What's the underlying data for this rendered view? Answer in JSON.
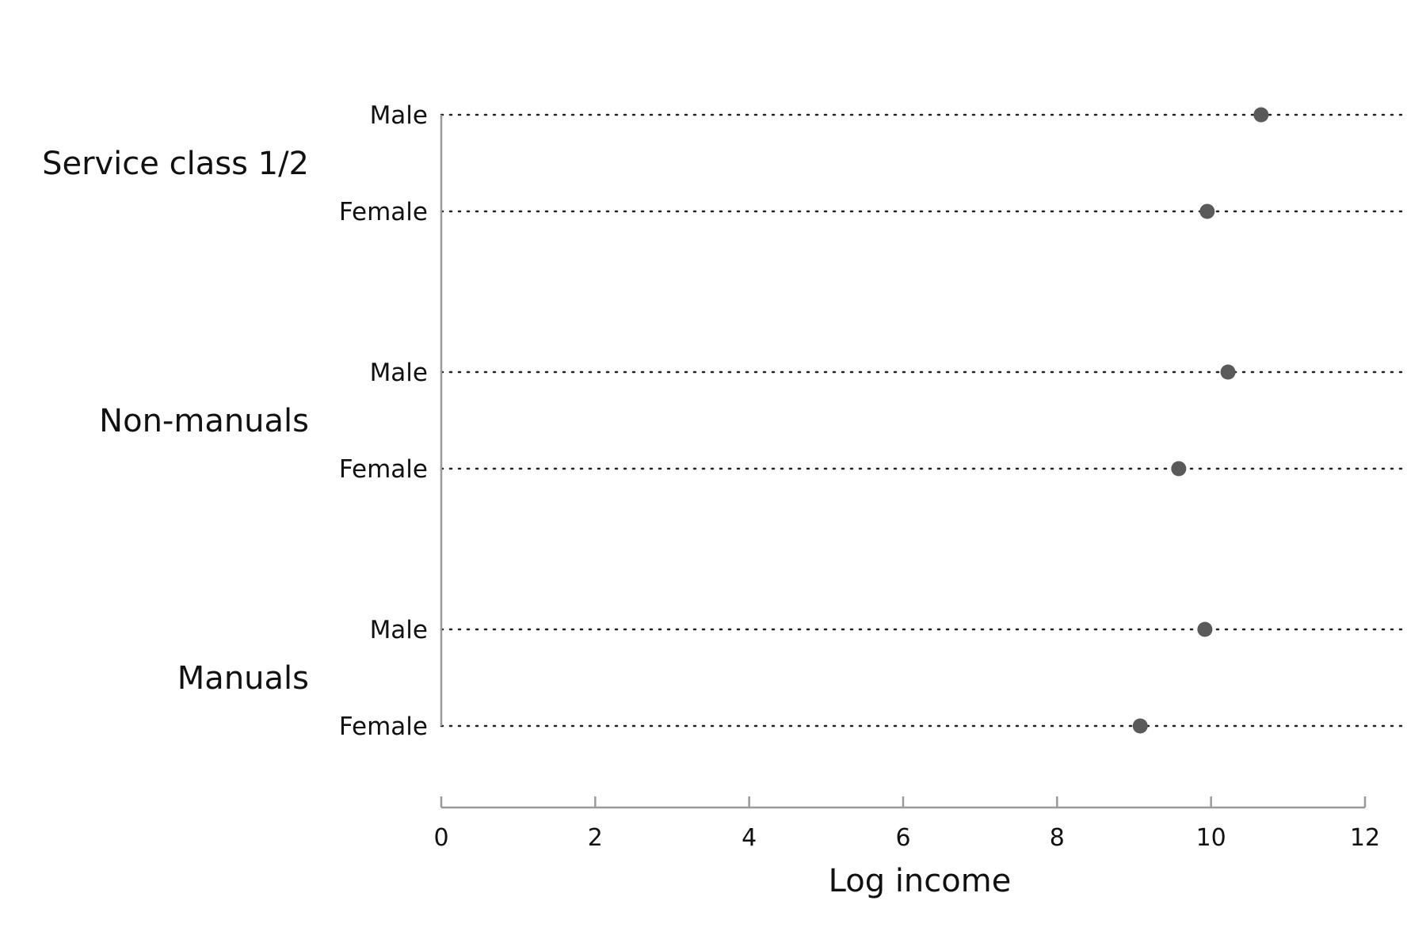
{
  "chart_data": {
    "type": "scatter",
    "title": "",
    "xlabel": "Log income",
    "ylabel": "",
    "xlim": [
      0,
      12
    ],
    "xticks": [
      "0",
      "2",
      "4",
      "6",
      "8",
      "10",
      "12"
    ],
    "grid": "dotted horizontal guide per row",
    "legend": "none",
    "groups": [
      {
        "label": "Service class 1/2",
        "rows": [
          {
            "label": "Male",
            "value": 10.65
          },
          {
            "label": "Female",
            "value": 9.95
          }
        ]
      },
      {
        "label": "Non-manuals",
        "rows": [
          {
            "label": "Male",
            "value": 10.22
          },
          {
            "label": "Female",
            "value": 9.58
          }
        ]
      },
      {
        "label": "Manuals",
        "rows": [
          {
            "label": "Male",
            "value": 9.92
          },
          {
            "label": "Female",
            "value": 9.08
          }
        ]
      }
    ],
    "colors": {
      "point": "#5a5a5a",
      "axis": "#9a9a9a",
      "guide": "#222222"
    }
  }
}
